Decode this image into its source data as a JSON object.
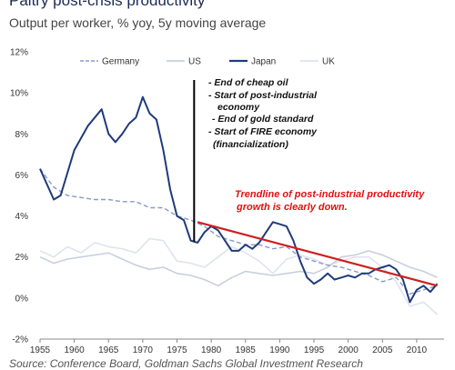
{
  "header": {
    "title": "Paltry post-crisis productivity",
    "subtitle": "Output per worker, % yoy, 5y moving average"
  },
  "footer": {
    "source": "Source: Conference Board, Goldman Sachs Global Investment Research"
  },
  "annotations": {
    "events": [
      "- End of cheap oil",
      "- Start of post-industrial",
      "economy",
      "- End of gold standard",
      "- Start of FIRE economy",
      "(financialization)"
    ],
    "trend_note": [
      "Trendline of post-industrial productivity",
      "growth is clearly down."
    ]
  },
  "colors": {
    "japan": "#1f3b7a",
    "germany": "#8a9ac8",
    "us": "#c9cfdc",
    "uk": "#dfe3ec",
    "trendline": "#cc1f1f",
    "marker": "#000000"
  },
  "chart_data": {
    "type": "line",
    "xlim": [
      1955,
      2014
    ],
    "ylim": [
      -2,
      12
    ],
    "x_ticks": [
      1955,
      1960,
      1965,
      1970,
      1975,
      1980,
      1985,
      1990,
      1995,
      2000,
      2005,
      2010
    ],
    "y_ticks": [
      -2,
      0,
      2,
      4,
      6,
      8,
      10,
      12
    ],
    "y_tick_labels": [
      "-2%",
      "0%",
      "2%",
      "4%",
      "6%",
      "8%",
      "10%",
      "12%"
    ],
    "legend_position": "top",
    "grid": false,
    "series": [
      {
        "name": "Germany",
        "style": "dashed",
        "points": [
          [
            1955,
            6.3
          ],
          [
            1957,
            5.4
          ],
          [
            1959,
            5.0
          ],
          [
            1961,
            4.9
          ],
          [
            1963,
            4.8
          ],
          [
            1965,
            4.8
          ],
          [
            1967,
            4.7
          ],
          [
            1969,
            4.7
          ],
          [
            1971,
            4.4
          ],
          [
            1973,
            4.4
          ],
          [
            1975,
            4.0
          ],
          [
            1977,
            3.8
          ],
          [
            1979,
            3.5
          ],
          [
            1981,
            3.0
          ],
          [
            1983,
            2.8
          ],
          [
            1985,
            2.6
          ],
          [
            1987,
            2.6
          ],
          [
            1989,
            2.4
          ],
          [
            1991,
            2.5
          ],
          [
            1993,
            2.0
          ],
          [
            1995,
            1.8
          ],
          [
            1997,
            1.6
          ],
          [
            1999,
            1.5
          ],
          [
            2001,
            1.3
          ],
          [
            2003,
            1.1
          ],
          [
            2005,
            0.8
          ],
          [
            2007,
            1.0
          ],
          [
            2009,
            0.2
          ],
          [
            2011,
            0.4
          ],
          [
            2013,
            0.6
          ]
        ]
      },
      {
        "name": "US",
        "style": "solid",
        "points": [
          [
            1955,
            2.0
          ],
          [
            1957,
            1.7
          ],
          [
            1959,
            1.9
          ],
          [
            1961,
            2.0
          ],
          [
            1963,
            2.1
          ],
          [
            1965,
            2.2
          ],
          [
            1967,
            1.9
          ],
          [
            1969,
            1.6
          ],
          [
            1971,
            1.4
          ],
          [
            1973,
            1.5
          ],
          [
            1975,
            1.2
          ],
          [
            1977,
            1.1
          ],
          [
            1979,
            0.9
          ],
          [
            1981,
            0.6
          ],
          [
            1983,
            1.0
          ],
          [
            1985,
            1.3
          ],
          [
            1987,
            1.2
          ],
          [
            1989,
            1.1
          ],
          [
            1991,
            1.2
          ],
          [
            1993,
            1.3
          ],
          [
            1995,
            1.2
          ],
          [
            1997,
            1.5
          ],
          [
            1999,
            2.0
          ],
          [
            2001,
            2.1
          ],
          [
            2003,
            2.3
          ],
          [
            2005,
            2.1
          ],
          [
            2007,
            1.8
          ],
          [
            2009,
            1.5
          ],
          [
            2011,
            1.3
          ],
          [
            2013,
            1.0
          ]
        ]
      },
      {
        "name": "Japan",
        "style": "solid",
        "points": [
          [
            1955,
            6.3
          ],
          [
            1957,
            4.8
          ],
          [
            1958,
            5.0
          ],
          [
            1960,
            7.2
          ],
          [
            1962,
            8.4
          ],
          [
            1964,
            9.2
          ],
          [
            1965,
            8.0
          ],
          [
            1966,
            7.6
          ],
          [
            1967,
            8.0
          ],
          [
            1968,
            8.5
          ],
          [
            1969,
            8.8
          ],
          [
            1970,
            9.8
          ],
          [
            1971,
            9.0
          ],
          [
            1972,
            8.7
          ],
          [
            1973,
            7.2
          ],
          [
            1974,
            5.3
          ],
          [
            1975,
            4.0
          ],
          [
            1976,
            3.8
          ],
          [
            1977,
            2.8
          ],
          [
            1978,
            2.7
          ],
          [
            1979,
            3.2
          ],
          [
            1980,
            3.5
          ],
          [
            1981,
            3.3
          ],
          [
            1982,
            2.8
          ],
          [
            1983,
            2.3
          ],
          [
            1984,
            2.3
          ],
          [
            1985,
            2.6
          ],
          [
            1986,
            2.4
          ],
          [
            1987,
            2.7
          ],
          [
            1988,
            3.2
          ],
          [
            1989,
            3.7
          ],
          [
            1990,
            3.6
          ],
          [
            1991,
            3.5
          ],
          [
            1992,
            2.8
          ],
          [
            1993,
            1.8
          ],
          [
            1994,
            1.0
          ],
          [
            1995,
            0.7
          ],
          [
            1996,
            0.9
          ],
          [
            1997,
            1.2
          ],
          [
            1998,
            0.9
          ],
          [
            1999,
            1.0
          ],
          [
            2000,
            1.1
          ],
          [
            2001,
            1.0
          ],
          [
            2002,
            1.2
          ],
          [
            2003,
            1.2
          ],
          [
            2004,
            1.4
          ],
          [
            2005,
            1.5
          ],
          [
            2006,
            1.6
          ],
          [
            2007,
            1.4
          ],
          [
            2008,
            0.9
          ],
          [
            2009,
            -0.2
          ],
          [
            2010,
            0.4
          ],
          [
            2011,
            0.6
          ],
          [
            2012,
            0.3
          ],
          [
            2013,
            0.7
          ]
        ]
      },
      {
        "name": "UK",
        "style": "solid",
        "points": [
          [
            1955,
            2.3
          ],
          [
            1957,
            2.0
          ],
          [
            1959,
            2.5
          ],
          [
            1961,
            2.2
          ],
          [
            1963,
            2.7
          ],
          [
            1965,
            2.5
          ],
          [
            1967,
            2.4
          ],
          [
            1969,
            2.2
          ],
          [
            1971,
            2.9
          ],
          [
            1973,
            2.8
          ],
          [
            1975,
            1.8
          ],
          [
            1977,
            1.7
          ],
          [
            1979,
            1.5
          ],
          [
            1981,
            2.0
          ],
          [
            1983,
            2.5
          ],
          [
            1985,
            2.2
          ],
          [
            1987,
            1.8
          ],
          [
            1989,
            1.2
          ],
          [
            1991,
            1.9
          ],
          [
            1993,
            2.1
          ],
          [
            1995,
            1.9
          ],
          [
            1997,
            1.6
          ],
          [
            1999,
            1.8
          ],
          [
            2001,
            2.0
          ],
          [
            2003,
            2.0
          ],
          [
            2005,
            1.5
          ],
          [
            2007,
            0.8
          ],
          [
            2009,
            -0.4
          ],
          [
            2011,
            -0.2
          ],
          [
            2013,
            -0.8
          ]
        ]
      }
    ],
    "event_marker_x": 1977.5,
    "trendline": [
      [
        1978,
        3.7
      ],
      [
        2013,
        0.6
      ]
    ]
  }
}
